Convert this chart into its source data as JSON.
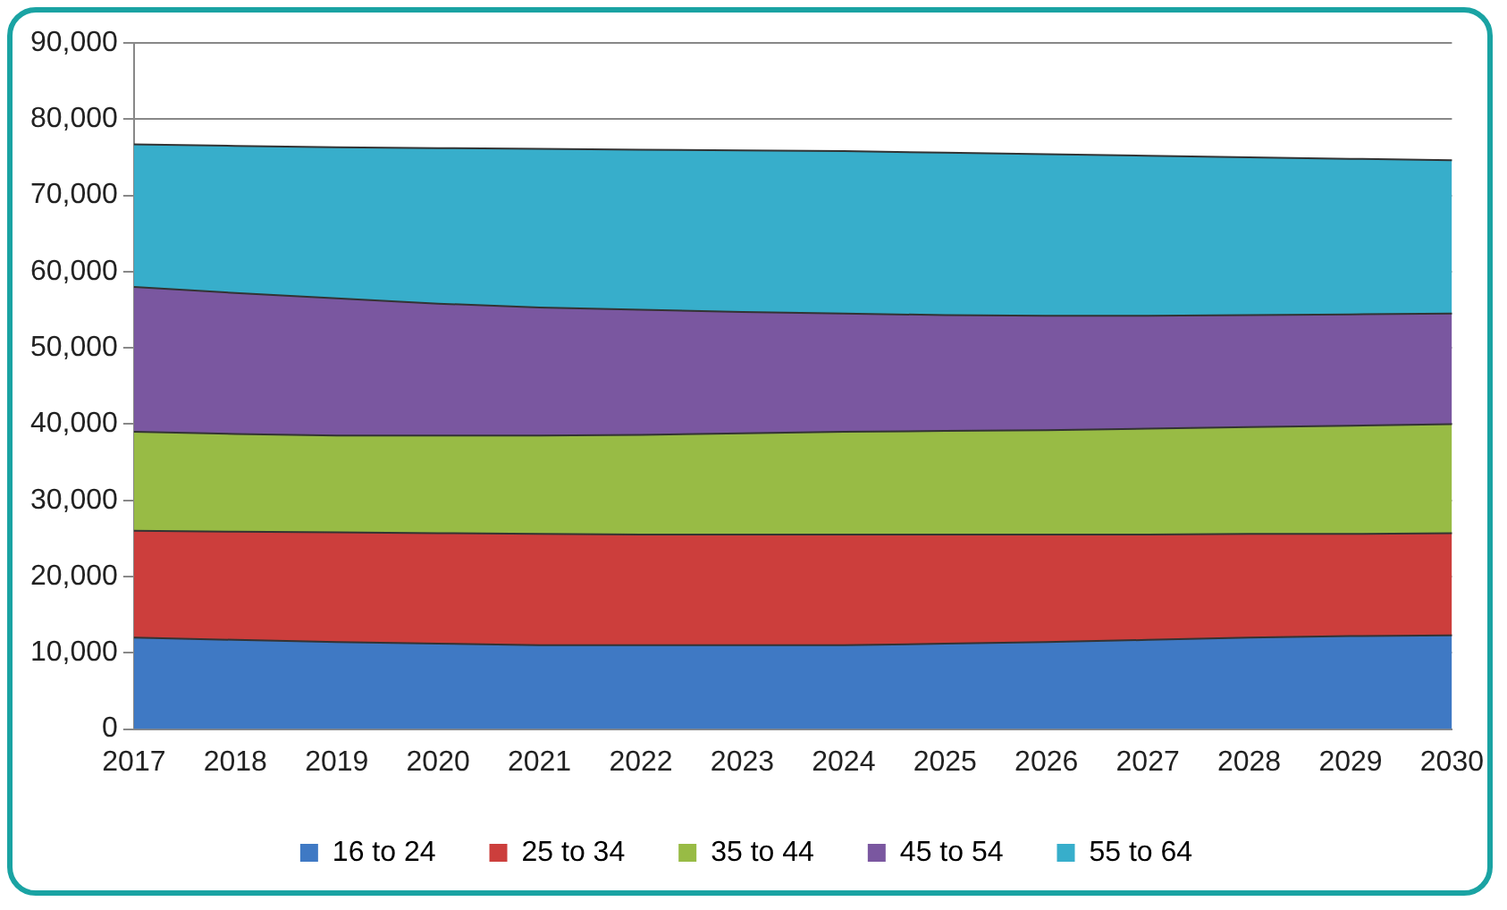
{
  "chart_data": {
    "type": "area",
    "stacked": true,
    "categories": [
      "2017",
      "2018",
      "2019",
      "2020",
      "2021",
      "2022",
      "2023",
      "2024",
      "2025",
      "2026",
      "2027",
      "2028",
      "2029",
      "2030"
    ],
    "series": [
      {
        "name": "16 to 24",
        "color": "#3f79c4",
        "values": [
          12000,
          11700,
          11400,
          11200,
          11000,
          11000,
          11000,
          11000,
          11200,
          11400,
          11700,
          12000,
          12200,
          12300
        ]
      },
      {
        "name": "25 to 34",
        "color": "#cc3e3c",
        "values": [
          14000,
          14200,
          14400,
          14500,
          14600,
          14500,
          14500,
          14500,
          14300,
          14100,
          13800,
          13600,
          13400,
          13400
        ]
      },
      {
        "name": "35 to 44",
        "color": "#98bb45",
        "values": [
          13000,
          12800,
          12700,
          12800,
          12900,
          13100,
          13300,
          13500,
          13600,
          13700,
          13900,
          14000,
          14200,
          14300
        ]
      },
      {
        "name": "45 to 54",
        "color": "#7a57a0",
        "values": [
          19000,
          18500,
          18000,
          17300,
          16800,
          16400,
          15900,
          15500,
          15200,
          15000,
          14800,
          14700,
          14600,
          14500
        ]
      },
      {
        "name": "55 to 64",
        "color": "#37aecb",
        "values": [
          18700,
          19300,
          19800,
          20400,
          20800,
          21000,
          21200,
          21300,
          21300,
          21200,
          21000,
          20700,
          20400,
          20100
        ]
      }
    ],
    "ylim": [
      0,
      90000
    ],
    "yticks": [
      0,
      {
        "value": 10000,
        "label": "10,000"
      },
      {
        "value": 20000,
        "label": "20,000"
      },
      {
        "value": 30000,
        "label": "30,000"
      },
      {
        "value": 40000,
        "label": "40,000"
      },
      {
        "value": 50000,
        "label": "50,000"
      },
      {
        "value": 60000,
        "label": "60,000"
      },
      {
        "value": 70000,
        "label": "70,000"
      },
      {
        "value": 80000,
        "label": "80,000"
      },
      {
        "value": 90000,
        "label": "90,000"
      }
    ],
    "grid": "y",
    "legend": "bottom"
  }
}
